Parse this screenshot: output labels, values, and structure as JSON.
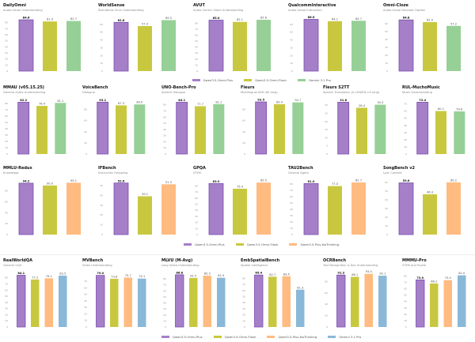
{
  "colors": {
    "Qwen3.5-Omni-Plus": "#a57fc8",
    "Qwen3.5-Omni-Flash": "#c8c840",
    "Gemini 3.1 Pro": "#96d096",
    "Qwen3.5-Plus-NoThinking": "#ffbb80",
    "plus_border": "#7b4fae"
  },
  "chart_data": [
    {
      "type": "bar",
      "title": "DailyOmni",
      "subtitle": "Audio-Visual Understanding",
      "categories": [
        "Qwen3.5-Omni-Plus",
        "Qwen3.5-Omni-Flash",
        "Gemini 3.1 Pro"
      ],
      "values": [
        84.6,
        81.9,
        82.7
      ],
      "yticks": [
        0,
        10,
        20,
        30,
        40,
        50,
        60,
        70,
        80
      ],
      "ylim": [
        0,
        86
      ]
    },
    {
      "type": "bar",
      "title": "WorldSense",
      "subtitle": "Real-World Omni Understanding",
      "categories": [
        "Qwen3.5-Omni-Plus",
        "Qwen3.5-Omni-Flash",
        "Gemini 3.1 Pro"
      ],
      "values": [
        62.6,
        57.9,
        65.5
      ],
      "yticks": [
        0,
        10,
        20,
        30,
        40,
        50,
        60
      ],
      "ylim": [
        0,
        67
      ]
    },
    {
      "type": "bar",
      "title": "AVUT",
      "subtitle": "Audio-Centric Video Understanding",
      "categories": [
        "Qwen3.5-Omni-Plus",
        "Qwen3.5-Omni-Flash",
        "Gemini 3.1 Pro"
      ],
      "values": [
        85.0,
        82.1,
        85.6
      ],
      "yticks": [
        0,
        10,
        20,
        30,
        40,
        50,
        60,
        70,
        80
      ],
      "ylim": [
        0,
        87
      ]
    },
    {
      "type": "bar",
      "title": "QualcommInteractive",
      "subtitle": "Audio-Visual Interaction",
      "categories": [
        "Qwen3.5-Omni-Plus",
        "Qwen3.5-Omni-Flash",
        "Gemini 3.1 Pro"
      ],
      "values": [
        66.5,
        64.1,
        64.7
      ],
      "yticks": [
        0,
        10,
        20,
        30,
        40,
        50,
        60
      ],
      "ylim": [
        0,
        67
      ]
    },
    {
      "type": "bar",
      "title": "Omni-Cloze",
      "subtitle": "Audio-Visual Detailed Caption",
      "categories": [
        "Qwen3.5-Omni-Plus",
        "Qwen3.5-Omni-Flash",
        "Gemini 3.1 Pro"
      ],
      "values": [
        64.8,
        62.0,
        57.2
      ],
      "yticks": [
        0,
        10,
        20,
        30,
        40,
        50,
        60
      ],
      "ylim": [
        0,
        66
      ]
    },
    {
      "type": "bar",
      "title": "MMAU (v05.15.25)",
      "subtitle": "General Audio Understanding",
      "categories": [
        "Qwen3.5-Omni-Plus",
        "Qwen3.5-Omni-Flash",
        "Gemini 3.1 Pro"
      ],
      "values": [
        82.2,
        76.4,
        81.1
      ],
      "yticks": [
        0,
        10,
        20,
        30,
        40,
        50,
        60,
        70,
        80
      ],
      "ylim": [
        0,
        84
      ]
    },
    {
      "type": "bar",
      "title": "VoiceBench",
      "subtitle": "Dialogue",
      "categories": [
        "Qwen3.5-Omni-Plus",
        "Qwen3.5-Omni-Flash",
        "Gemini 3.1 Pro"
      ],
      "values": [
        93.1,
        87.3,
        89.0
      ],
      "yticks": [
        0,
        20,
        40,
        60,
        80
      ],
      "ylim": [
        0,
        95
      ]
    },
    {
      "type": "bar",
      "title": "UNO-Bench-Pro",
      "subtitle": "Speech Dialogue",
      "categories": [
        "Qwen3.5-Omni-Plus",
        "Qwen3.5-Omni-Flash",
        "Gemini 3.1 Pro"
      ],
      "values": [
        84.1,
        77.7,
        81.1
      ],
      "yticks": [
        0,
        10,
        20,
        30,
        40,
        50,
        60,
        70,
        80
      ],
      "ylim": [
        0,
        86
      ]
    },
    {
      "type": "bar",
      "title": "Fleurs",
      "subtitle": "Multilingual ASR (60 lang)",
      "categories": [
        "Qwen3.5-Omni-Plus",
        "Qwen3.5-Omni-Flash",
        "Gemini 3.1 Pro"
      ],
      "values": [
        93.5,
        89.4,
        92.7
      ],
      "yticks": [
        0,
        20,
        40,
        60,
        80
      ],
      "ylim": [
        0,
        95
      ]
    },
    {
      "type": "bar",
      "title": "Fleurs S2TT",
      "subtitle": "Speech Translation (X->EN/EN->X lang)",
      "categories": [
        "Qwen3.5-Omni-Plus",
        "Qwen3.5-Omni-Flash",
        "Gemini 3.1 Pro"
      ],
      "values": [
        31.8,
        28.4,
        30.3
      ],
      "yticks": [
        0,
        5,
        10,
        15,
        20,
        25,
        30
      ],
      "ylim": [
        0,
        32.5
      ]
    },
    {
      "type": "bar",
      "title": "RUL-MuchoMusic",
      "subtitle": "Music Understanding",
      "categories": [
        "Qwen3.5-Omni-Plus",
        "Qwen3.5-Omni-Flash",
        "Gemini 3.1 Pro"
      ],
      "values": [
        72.4,
        60.1,
        59.6
      ],
      "yticks": [
        0,
        10,
        20,
        30,
        40,
        50,
        60,
        70
      ],
      "ylim": [
        0,
        74
      ]
    },
    {
      "type": "bar",
      "title": "MMLU-Redux",
      "subtitle": "Knowledge",
      "categories": [
        "Qwen3.5-Omni-Plus",
        "Qwen3.5-Omni-Flash",
        "Qwen3.5-Plus-NoThinking"
      ],
      "values": [
        94.2,
        90.0,
        95.1
      ],
      "yticks": [
        0,
        20,
        40,
        60,
        80
      ],
      "ylim": [
        0,
        97
      ]
    },
    {
      "type": "bar",
      "title": "IFBench",
      "subtitle": "Instruction Following",
      "categories": [
        "Qwen3.5-Omni-Plus",
        "Qwen3.5-Omni-Flash",
        "Qwen3.5-Plus-NoThinking"
      ],
      "values": [
        52.6,
        39.1,
        51.3
      ],
      "yticks": [
        0,
        10,
        20,
        30,
        40,
        50
      ],
      "ylim": [
        0,
        54
      ]
    },
    {
      "type": "bar",
      "title": "GPQA",
      "subtitle": "STEM",
      "categories": [
        "Qwen3.5-Omni-Plus",
        "Qwen3.5-Omni-Flash",
        "Qwen3.5-Plus-NoThinking"
      ],
      "values": [
        83.9,
        75.4,
        85.5
      ],
      "yticks": [
        0,
        10,
        20,
        30,
        40,
        50,
        60,
        70,
        80
      ],
      "ylim": [
        0,
        87
      ]
    },
    {
      "type": "bar",
      "title": "TAU2Bench",
      "subtitle": "General Agent",
      "categories": [
        "Qwen3.5-Omni-Plus",
        "Qwen3.5-Omni-Flash",
        "Qwen3.5-Plus-NoThinking"
      ],
      "values": [
        81.0,
        77.0,
        82.7
      ],
      "yticks": [
        0,
        10,
        20,
        30,
        40,
        50,
        60,
        70,
        80
      ],
      "ylim": [
        0,
        84
      ]
    },
    {
      "type": "bar",
      "title": "SongBench v2",
      "subtitle": "Lyric Content",
      "categories": [
        "Qwen3.5-Omni-Plus",
        "Qwen3.5-Omni-Flash",
        "Qwen3.5-Plus-NoThinking"
      ],
      "values": [
        59.6,
        46.4,
        60.2
      ],
      "yticks": [
        0,
        10,
        20,
        30,
        40,
        50,
        60
      ],
      "ylim": [
        0,
        61
      ]
    },
    {
      "type": "bar",
      "title": "RealWorldQA",
      "subtitle": "General VQA",
      "categories": [
        "Qwen3.5-Omni-Plus",
        "Qwen3.5-Omni-Flash",
        "Qwen3.5-Plus-NoThinking",
        "Gemini 3.1 Pro"
      ],
      "values": [
        84.1,
        77.2,
        79.1,
        83.5
      ],
      "yticks": [
        0,
        10,
        20,
        30,
        40,
        50,
        60,
        70,
        80
      ],
      "ylim": [
        0,
        86
      ]
    },
    {
      "type": "bar",
      "title": "MVBench",
      "subtitle": "Video Understanding",
      "categories": [
        "Qwen3.5-Omni-Plus",
        "Qwen3.5-Omni-Flash",
        "Qwen3.5-Plus-NoThinking",
        "Gemini 3.1 Pro"
      ],
      "values": [
        79.0,
        73.8,
        75.7,
        74.1
      ],
      "yticks": [
        0,
        10,
        20,
        30,
        40,
        50,
        60,
        70
      ],
      "ylim": [
        0,
        81
      ]
    },
    {
      "type": "bar",
      "title": "MLVU (M-Avg)",
      "subtitle": "Long Video Understanding",
      "categories": [
        "Qwen3.5-Omni-Plus",
        "Qwen3.5-Omni-Flash",
        "Qwen3.5-Plus-NoThinking",
        "Gemini 3.1 Pro"
      ],
      "values": [
        86.8,
        81.5,
        85.3,
        81.9
      ],
      "yticks": [
        0,
        10,
        20,
        30,
        40,
        50,
        60,
        70,
        80
      ],
      "ylim": [
        0,
        88
      ]
    },
    {
      "type": "bar",
      "title": "EmbSpatialBench",
      "subtitle": "Spatial Intelligence",
      "categories": [
        "Qwen3.5-Omni-Plus",
        "Qwen3.5-Omni-Flash",
        "Qwen3.5-Plus-NoThinking",
        "Gemini 3.1 Pro"
      ],
      "values": [
        85.4,
        82.7,
        83.4,
        61.3
      ],
      "yticks": [
        0,
        10,
        20,
        30,
        40,
        50,
        60,
        70,
        80
      ],
      "ylim": [
        0,
        87
      ]
    },
    {
      "type": "bar",
      "title": "OCRBench",
      "subtitle": "Text Recognition & Doc Understanding",
      "categories": [
        "Qwen3.5-Omni-Plus",
        "Qwen3.5-Omni-Flash",
        "Qwen3.5-Plus-NoThinking",
        "Gemini 3.1 Pro"
      ],
      "values": [
        91.3,
        88.1,
        93.4,
        90.1
      ],
      "yticks": [
        0,
        20,
        40,
        60,
        80
      ],
      "ylim": [
        0,
        93
      ]
    },
    {
      "type": "bar",
      "title": "MMMU-Pro",
      "subtitle": "STEM and Puzzle",
      "categories": [
        "Qwen3.5-Omni-Plus",
        "Qwen3.5-Omni-Flash",
        "Qwen3.5-Plus-NoThinking",
        "Gemini 3.1 Pro"
      ],
      "values": [
        73.9,
        68.2,
        73.4,
        81.0
      ],
      "yticks": [
        0,
        10,
        20,
        30,
        40,
        50,
        60,
        70,
        80
      ],
      "ylim": [
        0,
        83
      ]
    }
  ],
  "legends": [
    [
      "Qwen3.5-Omni-Plus",
      "Qwen3.5-Omni-Flash",
      "Gemini 3.1 Pro"
    ],
    [
      "Qwen3.5-Omni-Plus",
      "Qwen3.5-Omni-Flash",
      "Qwen3.5-Plus-NoThinking"
    ],
    [
      "Qwen3.5-Omni-Plus",
      "Qwen3.5-Omni-Flash",
      "Qwen3.5-Plus-NoThinking",
      "Gemini 3.1 Pro"
    ]
  ]
}
